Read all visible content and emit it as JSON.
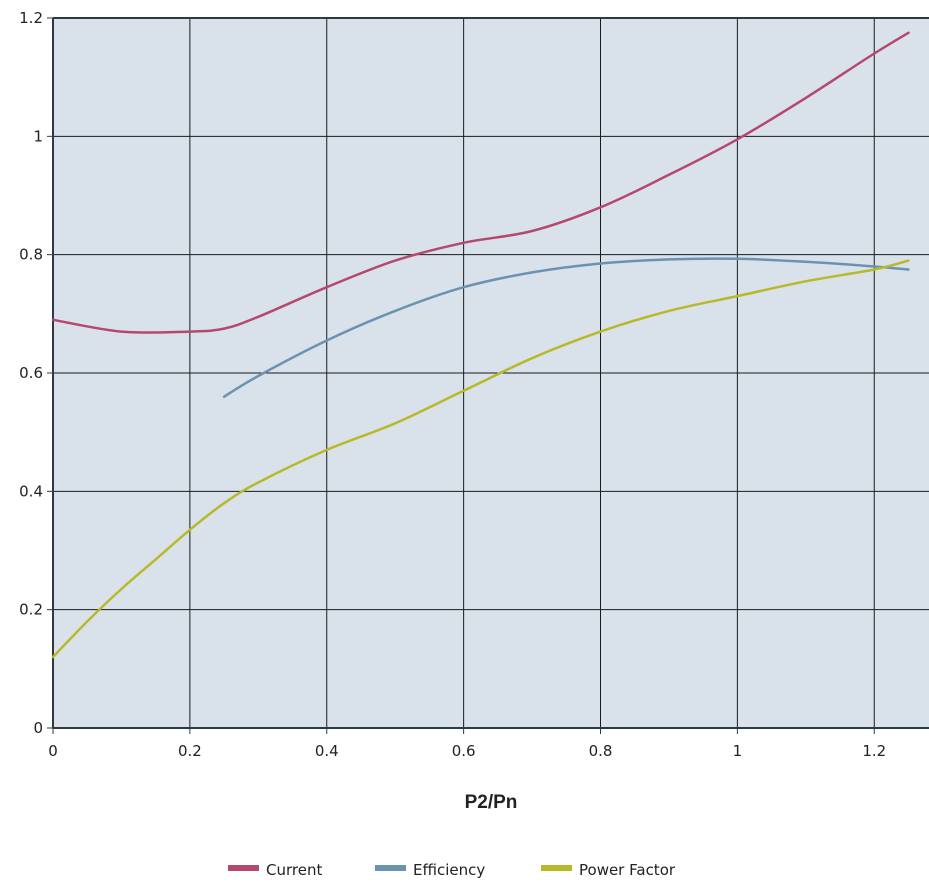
{
  "chart_data": {
    "type": "line",
    "title": "",
    "xlabel": "P2/Pn",
    "ylabel": "",
    "xlim": [
      0,
      1.28
    ],
    "ylim": [
      0,
      1.2
    ],
    "x_ticks": [
      "0",
      "0.2",
      "0.4",
      "0.6",
      "0.8",
      "1",
      "1.2"
    ],
    "y_ticks": [
      "0",
      "0.2",
      "0.4",
      "0.6",
      "0.8",
      "1",
      "1.2"
    ],
    "grid": true,
    "legend_position": "bottom-center",
    "plot_background": "#d9e2ea",
    "series": [
      {
        "name": "Current",
        "color": "#b5486f",
        "x": [
          0,
          0.1,
          0.2,
          0.25,
          0.3,
          0.4,
          0.5,
          0.6,
          0.7,
          0.8,
          0.9,
          1.0,
          1.1,
          1.2,
          1.25
        ],
        "y": [
          0.69,
          0.67,
          0.67,
          0.675,
          0.695,
          0.745,
          0.79,
          0.82,
          0.84,
          0.88,
          0.935,
          0.995,
          1.065,
          1.14,
          1.175
        ]
      },
      {
        "name": "Efficiency",
        "color": "#6b93b0",
        "x": [
          0.25,
          0.3,
          0.4,
          0.5,
          0.6,
          0.7,
          0.8,
          0.9,
          1.0,
          1.1,
          1.2,
          1.25
        ],
        "y": [
          0.56,
          0.595,
          0.655,
          0.705,
          0.745,
          0.77,
          0.785,
          0.792,
          0.793,
          0.788,
          0.78,
          0.775
        ]
      },
      {
        "name": "Power Factor",
        "color": "#b8b92a",
        "x": [
          0,
          0.05,
          0.1,
          0.15,
          0.2,
          0.25,
          0.3,
          0.4,
          0.5,
          0.6,
          0.7,
          0.8,
          0.9,
          1.0,
          1.1,
          1.2,
          1.25
        ],
        "y": [
          0.12,
          0.18,
          0.235,
          0.285,
          0.335,
          0.38,
          0.415,
          0.47,
          0.515,
          0.57,
          0.625,
          0.67,
          0.705,
          0.73,
          0.755,
          0.775,
          0.79
        ]
      }
    ]
  }
}
